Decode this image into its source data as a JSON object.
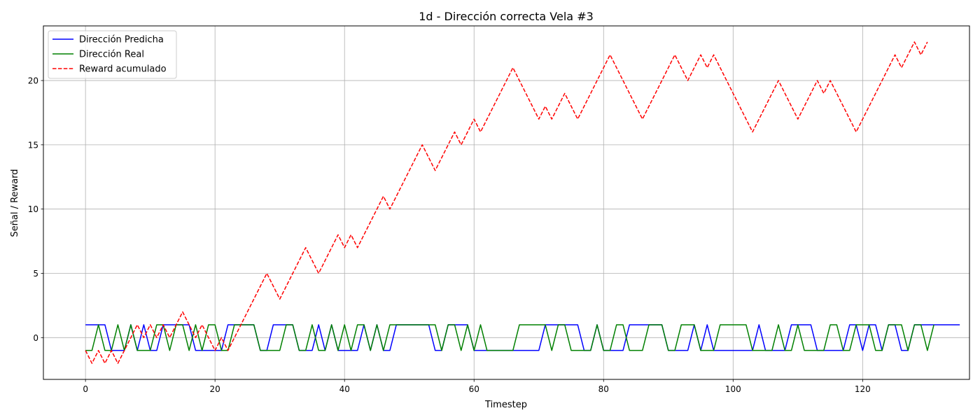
{
  "chart_data": {
    "type": "line",
    "title": "1d - Dirección correcta Vela #3",
    "xlabel": "Timestep",
    "ylabel": "Señal / Reward",
    "xlim": [
      -6.5,
      136.5
    ],
    "ylim": [
      -3.25,
      24.25
    ],
    "xticks": [
      0,
      20,
      40,
      60,
      80,
      100,
      120
    ],
    "yticks": [
      0,
      5,
      10,
      15,
      20
    ],
    "grid": true,
    "legend_position": "top-left",
    "series": [
      {
        "name": "Dirección Predicha",
        "color": "#0000ff",
        "style": "solid",
        "values": [
          1,
          1,
          1,
          1,
          -1,
          -1,
          -1,
          1,
          -1,
          1,
          -1,
          -1,
          1,
          1,
          1,
          1,
          1,
          -1,
          -1,
          -1,
          -1,
          -1,
          1,
          1,
          1,
          1,
          1,
          -1,
          -1,
          1,
          1,
          1,
          1,
          -1,
          -1,
          -1,
          1,
          -1,
          1,
          -1,
          -1,
          -1,
          -1,
          1,
          -1,
          1,
          -1,
          -1,
          1,
          1,
          1,
          1,
          1,
          1,
          -1,
          -1,
          1,
          1,
          1,
          1,
          -1,
          -1,
          -1,
          -1,
          -1,
          -1,
          -1,
          -1,
          -1,
          -1,
          -1,
          1,
          1,
          1,
          1,
          1,
          1,
          -1,
          -1,
          1,
          -1,
          -1,
          -1,
          -1,
          1,
          1,
          1,
          1,
          1,
          1,
          -1,
          -1,
          -1,
          -1,
          1,
          -1,
          1,
          -1,
          -1,
          -1,
          -1,
          -1,
          -1,
          -1,
          1,
          -1,
          -1,
          -1,
          -1,
          1,
          1,
          1,
          1,
          -1,
          -1,
          -1,
          -1,
          -1,
          1,
          1,
          -1,
          1,
          1,
          -1,
          1,
          1,
          -1,
          -1,
          1,
          1,
          1,
          1,
          1,
          1,
          1,
          1
        ]
      },
      {
        "name": "Dirección Real",
        "color": "#008000",
        "style": "solid",
        "values": [
          -1,
          -1,
          1,
          -1,
          -1,
          1,
          -1,
          1,
          -1,
          -1,
          -1,
          1,
          1,
          -1,
          1,
          1,
          -1,
          1,
          -1,
          1,
          1,
          -1,
          -1,
          1,
          1,
          1,
          1,
          -1,
          -1,
          -1,
          -1,
          1,
          1,
          -1,
          -1,
          1,
          -1,
          -1,
          1,
          -1,
          1,
          -1,
          1,
          1,
          -1,
          1,
          -1,
          1,
          1,
          1,
          1,
          1,
          1,
          1,
          1,
          -1,
          1,
          1,
          -1,
          1,
          -1,
          1,
          -1,
          -1,
          -1,
          -1,
          -1,
          1,
          1,
          1,
          1,
          1,
          -1,
          1,
          1,
          -1,
          -1,
          -1,
          -1,
          1,
          -1,
          -1,
          1,
          1,
          -1,
          -1,
          -1,
          1,
          1,
          1,
          -1,
          -1,
          1,
          1,
          1,
          -1,
          -1,
          -1,
          1,
          1,
          1,
          1,
          1,
          -1,
          -1,
          -1,
          -1,
          1,
          -1,
          -1,
          1,
          -1,
          -1,
          -1,
          -1,
          1,
          1,
          -1,
          -1,
          1,
          1,
          1,
          -1,
          -1,
          1,
          1,
          1,
          -1,
          1,
          1,
          -1,
          1
        ]
      },
      {
        "name": "Reward acumulado",
        "color": "#ff0000",
        "style": "dashed",
        "values": [
          -1,
          -2,
          -1,
          -2,
          -1,
          -2,
          -1,
          0,
          1,
          0,
          1,
          0,
          1,
          0,
          1,
          2,
          1,
          0,
          1,
          0,
          -1,
          0,
          -1,
          0,
          1,
          2,
          3,
          4,
          5,
          4,
          3,
          4,
          5,
          6,
          7,
          6,
          5,
          6,
          7,
          8,
          7,
          8,
          7,
          8,
          9,
          10,
          11,
          10,
          11,
          12,
          13,
          14,
          15,
          14,
          13,
          14,
          15,
          16,
          15,
          16,
          17,
          16,
          17,
          18,
          19,
          20,
          21,
          20,
          19,
          18,
          17,
          18,
          17,
          18,
          19,
          18,
          17,
          18,
          19,
          20,
          21,
          22,
          21,
          20,
          19,
          18,
          17,
          18,
          19,
          20,
          21,
          22,
          21,
          20,
          21,
          22,
          21,
          22,
          21,
          20,
          19,
          18,
          17,
          16,
          17,
          18,
          19,
          20,
          19,
          18,
          17,
          18,
          19,
          20,
          19,
          20,
          19,
          18,
          17,
          16,
          17,
          18,
          19,
          20,
          21,
          22,
          21,
          22,
          23,
          22,
          23
        ]
      }
    ]
  }
}
